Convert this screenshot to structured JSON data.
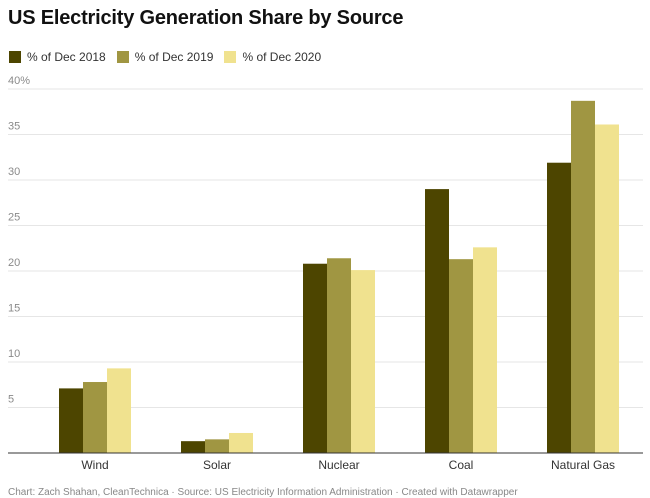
{
  "chart_data": {
    "type": "bar",
    "title": "US Electricity Generation Share by Source",
    "categories": [
      "Wind",
      "Solar",
      "Nuclear",
      "Coal",
      "Natural Gas"
    ],
    "series": [
      {
        "name": "% of Dec 2018",
        "color": "#4d4500",
        "values": [
          7.1,
          1.3,
          20.8,
          29.0,
          31.9
        ]
      },
      {
        "name": "% of Dec 2019",
        "color": "#a09642",
        "values": [
          7.8,
          1.5,
          21.4,
          21.3,
          38.7
        ]
      },
      {
        "name": "% of Dec 2020",
        "color": "#f0e28f",
        "values": [
          9.3,
          2.2,
          20.1,
          22.6,
          36.1
        ]
      }
    ],
    "ylim": [
      0,
      40
    ],
    "yticks": [
      0,
      5,
      10,
      15,
      20,
      25,
      30,
      35,
      40
    ],
    "ytick_labels": [
      "",
      "5",
      "10",
      "15",
      "20",
      "25",
      "30",
      "35",
      "40%"
    ],
    "xlabel": "",
    "ylabel": "",
    "grid": true,
    "legend_position": "top-left"
  },
  "footer": "Chart: Zach Shahan, CleanTechnica · Source: US Electricity Information Administration · Created with Datawrapper"
}
